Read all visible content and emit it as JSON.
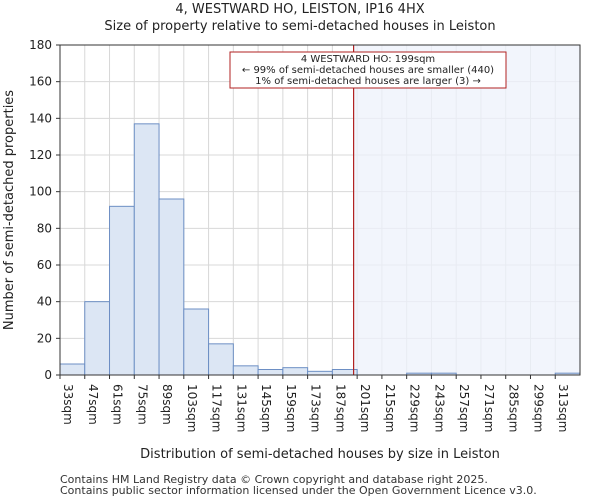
{
  "header": {
    "title": "4, WESTWARD HO, LEISTON, IP16 4HX",
    "subtitle": "Size of property relative to semi-detached houses in Leiston"
  },
  "footer": {
    "line1": "Contains HM Land Registry data © Crown copyright and database right 2025.",
    "line2": "Contains public sector information licensed under the Open Government Licence v3.0."
  },
  "colors": {
    "bar_fill": "#dce6f4",
    "bar_stroke": "#6d8fc4",
    "marker": "#b22222",
    "highlight": "#eef2fb"
  },
  "chart_data": {
    "type": "bar",
    "title": "4, WESTWARD HO, LEISTON, IP16 4HX",
    "subtitle": "Size of property relative to semi-detached houses in Leiston",
    "xlabel": "Distribution of semi-detached houses by size in Leiston",
    "ylabel": "Number of semi-detached properties",
    "categories": [
      "33sqm",
      "47sqm",
      "61sqm",
      "75sqm",
      "89sqm",
      "103sqm",
      "117sqm",
      "131sqm",
      "145sqm",
      "159sqm",
      "173sqm",
      "187sqm",
      "201sqm",
      "215sqm",
      "229sqm",
      "243sqm",
      "257sqm",
      "271sqm",
      "285sqm",
      "299sqm",
      "313sqm"
    ],
    "values": [
      6,
      40,
      92,
      137,
      96,
      36,
      17,
      5,
      3,
      4,
      2,
      3,
      0,
      0,
      1,
      1,
      0,
      0,
      0,
      0,
      1
    ],
    "ylim": [
      0,
      180
    ],
    "yticks": [
      0,
      20,
      40,
      60,
      80,
      100,
      120,
      140,
      160,
      180
    ],
    "grid": true,
    "marker": {
      "value_sqm": 199,
      "start_sqm": 33,
      "bin_width_sqm": 14
    },
    "annotation": {
      "line1": "4 WESTWARD HO: 199sqm",
      "line2": "← 99% of semi-detached houses are smaller (440)",
      "line3": "1% of semi-detached houses are larger (3) →"
    }
  }
}
